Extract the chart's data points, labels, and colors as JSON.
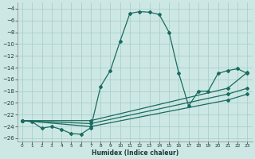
{
  "xlabel": "Humidex (Indice chaleur)",
  "background_color": "#cde8e4",
  "grid_color": "#aacfcb",
  "line_color": "#1a6b60",
  "xlim": [
    -0.5,
    23.5
  ],
  "ylim": [
    -26.5,
    -3.0
  ],
  "yticks": [
    -4,
    -6,
    -8,
    -10,
    -12,
    -14,
    -16,
    -18,
    -20,
    -22,
    -24,
    -26
  ],
  "xticks": [
    0,
    1,
    2,
    3,
    4,
    5,
    6,
    7,
    8,
    9,
    10,
    11,
    12,
    13,
    14,
    15,
    16,
    17,
    18,
    19,
    20,
    21,
    22,
    23
  ],
  "main_x": [
    0,
    1,
    2,
    3,
    4,
    5,
    6,
    7,
    8,
    9,
    10,
    11,
    12,
    13,
    14,
    15,
    16,
    17,
    18,
    19,
    20,
    21,
    22,
    23
  ],
  "main_y": [
    -23.0,
    -23.2,
    -24.3,
    -24.0,
    -24.5,
    -25.2,
    -25.3,
    -24.2,
    -17.2,
    -14.5,
    -9.5,
    -4.8,
    -4.5,
    -4.6,
    -5.0,
    -8.0,
    -15.0,
    -20.5,
    -18.0,
    -18.0,
    -15.0,
    -14.5,
    -14.2,
    -15.0
  ],
  "line2_x": [
    0,
    7,
    21,
    23
  ],
  "line2_y": [
    -23.0,
    -23.0,
    -17.5,
    -14.8
  ],
  "line3_x": [
    0,
    7,
    21,
    23
  ],
  "line3_y": [
    -23.0,
    -23.5,
    -18.5,
    -17.5
  ],
  "line4_x": [
    0,
    7,
    21,
    23
  ],
  "line4_y": [
    -23.0,
    -24.0,
    -19.5,
    -18.5
  ]
}
